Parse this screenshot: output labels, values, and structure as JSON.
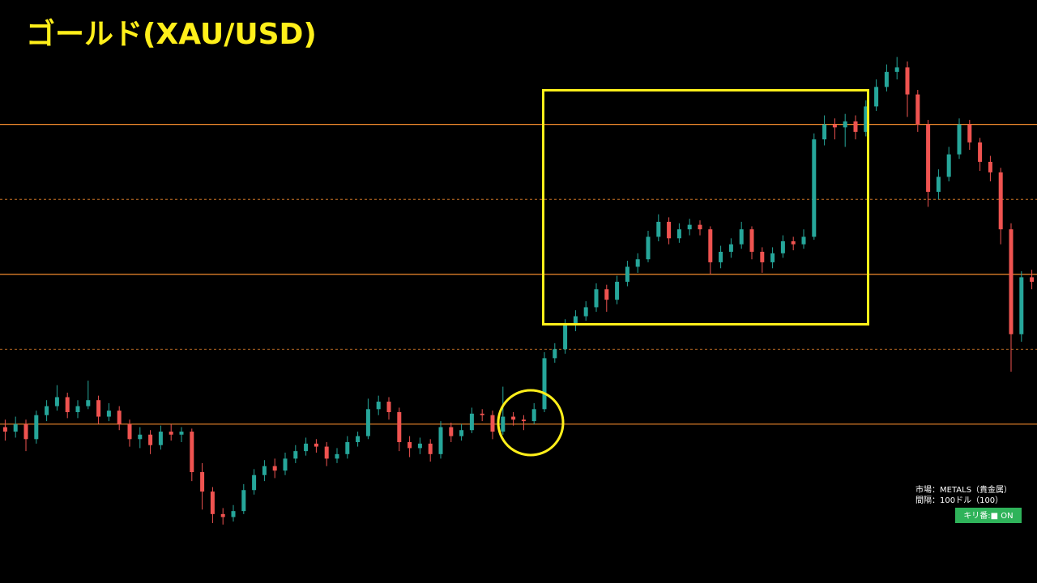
{
  "chart_data": {
    "type": "candlestick",
    "title": "ゴールド(XAU/USD)",
    "up_color": "#26a69a",
    "down_color": "#ef5350",
    "level_color": "#f0892d",
    "ylim": [
      1794,
      2183
    ],
    "yticks": [
      1900,
      2000,
      2100
    ],
    "minor_yticks": [
      1950,
      2050
    ],
    "ohlc": [
      [
        1898,
        1903,
        1889,
        1895
      ],
      [
        1895,
        1905,
        1891,
        1900
      ],
      [
        1900,
        1903,
        1882,
        1890
      ],
      [
        1890,
        1909,
        1887,
        1906
      ],
      [
        1906,
        1916,
        1902,
        1912
      ],
      [
        1912,
        1926,
        1909,
        1918
      ],
      [
        1918,
        1921,
        1904,
        1908
      ],
      [
        1908,
        1916,
        1904,
        1912
      ],
      [
        1912,
        1929,
        1910,
        1916
      ],
      [
        1916,
        1919,
        1900,
        1905
      ],
      [
        1905,
        1914,
        1902,
        1909
      ],
      [
        1909,
        1912,
        1896,
        1900
      ],
      [
        1900,
        1903,
        1885,
        1890
      ],
      [
        1890,
        1898,
        1884,
        1893
      ],
      [
        1893,
        1896,
        1880,
        1886
      ],
      [
        1886,
        1899,
        1883,
        1895
      ],
      [
        1895,
        1900,
        1889,
        1893
      ],
      [
        1893,
        1898,
        1888,
        1895
      ],
      [
        1895,
        1897,
        1862,
        1868
      ],
      [
        1868,
        1874,
        1843,
        1855
      ],
      [
        1855,
        1858,
        1834,
        1840
      ],
      [
        1840,
        1844,
        1833,
        1838
      ],
      [
        1838,
        1846,
        1835,
        1842
      ],
      [
        1842,
        1860,
        1840,
        1856
      ],
      [
        1856,
        1870,
        1853,
        1866
      ],
      [
        1866,
        1876,
        1862,
        1872
      ],
      [
        1872,
        1877,
        1864,
        1869
      ],
      [
        1869,
        1881,
        1866,
        1877
      ],
      [
        1877,
        1886,
        1874,
        1882
      ],
      [
        1882,
        1891,
        1879,
        1887
      ],
      [
        1887,
        1890,
        1881,
        1885
      ],
      [
        1885,
        1888,
        1872,
        1877
      ],
      [
        1877,
        1884,
        1874,
        1880
      ],
      [
        1880,
        1892,
        1877,
        1888
      ],
      [
        1888,
        1895,
        1885,
        1892
      ],
      [
        1892,
        1917,
        1890,
        1910
      ],
      [
        1910,
        1919,
        1906,
        1915
      ],
      [
        1915,
        1918,
        1903,
        1908
      ],
      [
        1908,
        1911,
        1882,
        1888
      ],
      [
        1888,
        1892,
        1878,
        1884
      ],
      [
        1884,
        1891,
        1880,
        1887
      ],
      [
        1887,
        1890,
        1875,
        1880
      ],
      [
        1880,
        1902,
        1877,
        1898
      ],
      [
        1898,
        1901,
        1888,
        1892
      ],
      [
        1892,
        1900,
        1889,
        1896
      ],
      [
        1896,
        1911,
        1894,
        1907
      ],
      [
        1907,
        1910,
        1902,
        1906
      ],
      [
        1906,
        1909,
        1890,
        1895
      ],
      [
        1895,
        1925,
        1893,
        1905
      ],
      [
        1905,
        1908,
        1899,
        1903
      ],
      [
        1903,
        1906,
        1896,
        1902
      ],
      [
        1902,
        1914,
        1900,
        1910
      ],
      [
        1910,
        1948,
        1908,
        1944
      ],
      [
        1944,
        1954,
        1941,
        1950
      ],
      [
        1950,
        1970,
        1947,
        1966
      ],
      [
        1966,
        1976,
        1962,
        1972
      ],
      [
        1972,
        1982,
        1969,
        1978
      ],
      [
        1978,
        1994,
        1975,
        1990
      ],
      [
        1990,
        1993,
        1975,
        1983
      ],
      [
        1983,
        1999,
        1980,
        1995
      ],
      [
        1995,
        2009,
        1992,
        2005
      ],
      [
        2005,
        2014,
        2001,
        2010
      ],
      [
        2010,
        2029,
        2008,
        2025
      ],
      [
        2025,
        2040,
        2022,
        2035
      ],
      [
        2035,
        2038,
        2020,
        2024
      ],
      [
        2024,
        2034,
        2021,
        2030
      ],
      [
        2030,
        2037,
        2026,
        2033
      ],
      [
        2033,
        2036,
        2026,
        2030
      ],
      [
        2030,
        2032,
        2000,
        2008
      ],
      [
        2008,
        2019,
        2004,
        2015
      ],
      [
        2015,
        2024,
        2011,
        2020
      ],
      [
        2020,
        2035,
        2017,
        2030
      ],
      [
        2030,
        2032,
        2010,
        2015
      ],
      [
        2015,
        2018,
        2001,
        2008
      ],
      [
        2008,
        2018,
        2004,
        2014
      ],
      [
        2014,
        2026,
        2011,
        2022
      ],
      [
        2022,
        2025,
        2016,
        2020
      ],
      [
        2020,
        2030,
        2017,
        2025
      ],
      [
        2025,
        2094,
        2023,
        2090
      ],
      [
        2090,
        2106,
        2086,
        2100
      ],
      [
        2100,
        2104,
        2090,
        2098
      ],
      [
        2098,
        2107,
        2085,
        2102
      ],
      [
        2102,
        2106,
        2090,
        2095
      ],
      [
        2095,
        2116,
        2092,
        2112
      ],
      [
        2112,
        2130,
        2109,
        2125
      ],
      [
        2125,
        2140,
        2122,
        2135
      ],
      [
        2135,
        2145,
        2130,
        2138
      ],
      [
        2138,
        2142,
        2105,
        2120
      ],
      [
        2120,
        2123,
        2095,
        2100
      ],
      [
        2100,
        2103,
        2045,
        2055
      ],
      [
        2055,
        2070,
        2050,
        2065
      ],
      [
        2065,
        2085,
        2062,
        2080
      ],
      [
        2080,
        2104,
        2077,
        2100
      ],
      [
        2100,
        2103,
        2083,
        2088
      ],
      [
        2088,
        2091,
        2069,
        2075
      ],
      [
        2075,
        2079,
        2062,
        2068
      ],
      [
        2068,
        2071,
        2020,
        2030
      ],
      [
        2030,
        2034,
        1935,
        1960
      ],
      [
        1960,
        2002,
        1955,
        1998
      ],
      [
        1998,
        2003,
        1990,
        1995
      ]
    ],
    "annotations": {
      "market": "市場：METALS（貴金属）",
      "interval": "間隔：100ドル（100）",
      "toggle": "キリ番:■ ON"
    }
  }
}
